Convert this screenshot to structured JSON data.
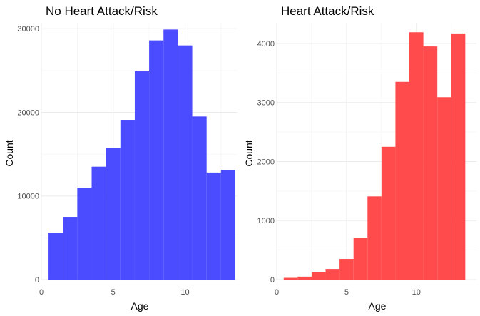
{
  "chart_data": [
    {
      "type": "bar",
      "title": "No Heart Attack/Risk",
      "xlabel": "Age",
      "ylabel": "Count",
      "xlim": [
        0,
        13.6
      ],
      "ylim": [
        0,
        30700
      ],
      "xticks": [
        0,
        5,
        10
      ],
      "yticks": [
        0,
        10000,
        20000,
        30000
      ],
      "color": "#4b4bff",
      "bin_width": 1,
      "x": [
        1,
        2,
        3,
        4,
        5,
        6,
        7,
        8,
        9,
        10,
        11,
        12,
        13
      ],
      "values": [
        5600,
        7500,
        11000,
        13500,
        15700,
        19100,
        24900,
        28600,
        29900,
        28000,
        19500,
        12800,
        13100
      ],
      "grid": true
    },
    {
      "type": "bar",
      "title": "Heart Attack/Risk",
      "xlabel": "Age",
      "ylabel": "Count",
      "xlim": [
        0,
        14.3
      ],
      "ylim": [
        0,
        4350
      ],
      "xticks": [
        0,
        5,
        10
      ],
      "yticks": [
        0,
        1000,
        2000,
        3000,
        4000
      ],
      "color": "#ff4b4b",
      "bin_width": 1,
      "x": [
        1,
        2,
        3,
        4,
        5,
        6,
        7,
        8,
        9,
        10,
        11,
        12,
        13
      ],
      "values": [
        30,
        50,
        125,
        180,
        350,
        710,
        1410,
        2250,
        3350,
        4190,
        3950,
        3090,
        4170
      ],
      "grid": true
    }
  ]
}
